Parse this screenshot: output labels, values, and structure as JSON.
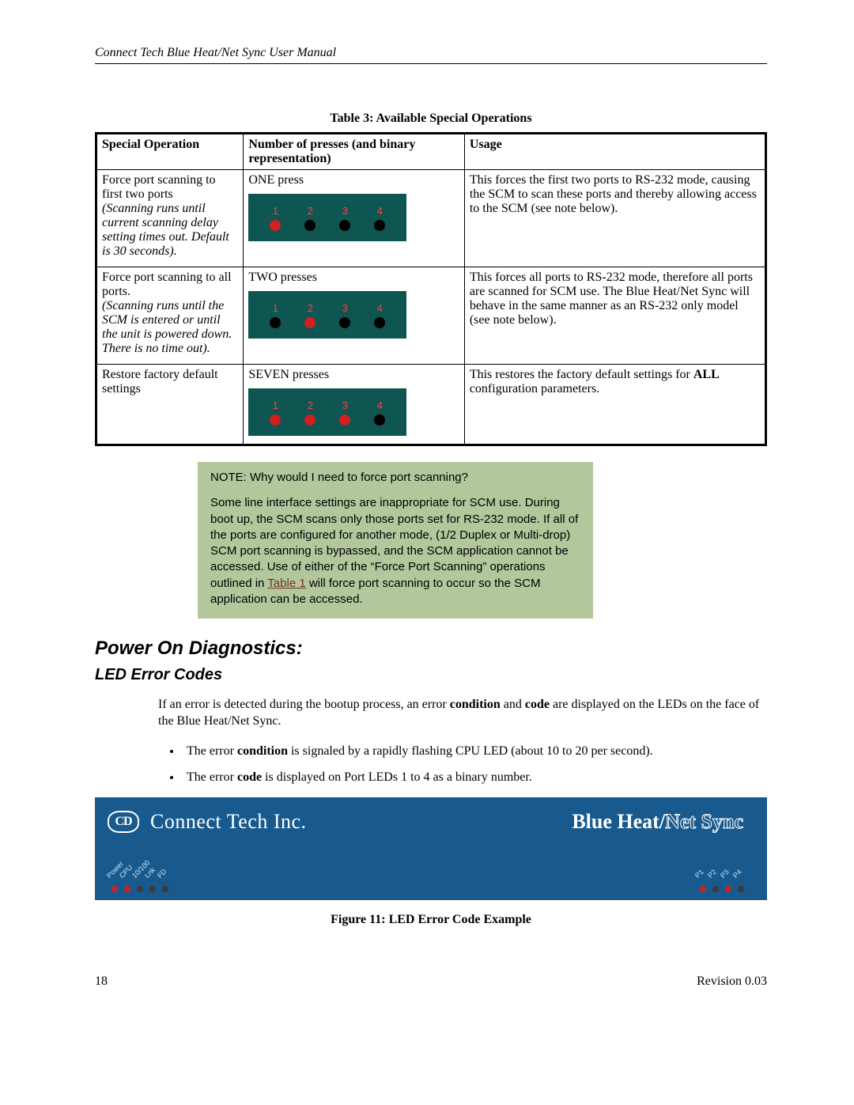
{
  "header": {
    "title": "Connect Tech Blue Heat/Net Sync User Manual"
  },
  "table": {
    "caption": "Table 3: Available Special Operations",
    "columns": [
      "Special Operation",
      "Number of presses (and binary representation)",
      "Usage"
    ],
    "rows": [
      {
        "op_title": "Force port scanning to first two ports",
        "op_note": "(Scanning runs until current scanning delay setting times out. Default is 30 seconds).",
        "presses_label": "ONE press",
        "leds": [
          "on",
          "off",
          "off",
          "off"
        ],
        "usage": "This forces the first two ports to RS-232 mode, causing the SCM to scan these ports and thereby allowing access to the SCM (see note below)."
      },
      {
        "op_title": "Force port scanning to all ports.",
        "op_note": "(Scanning runs until the SCM is entered or until the unit is powered down. There is no time out).",
        "presses_label": "TWO presses",
        "leds": [
          "off",
          "on",
          "off",
          "off"
        ],
        "usage": "This forces all ports to RS-232 mode, therefore all ports are scanned for SCM use. The Blue Heat/Net Sync will behave in the same manner as an RS-232 only model (see note below)."
      },
      {
        "op_title": "Restore factory default settings",
        "op_note": "",
        "presses_label": "SEVEN  presses",
        "leds": [
          "on",
          "on",
          "on",
          "off"
        ],
        "usage_pre": "This restores the factory default settings for ",
        "usage_bold": "ALL",
        "usage_post": " configuration parameters."
      }
    ],
    "led_labels": [
      "1",
      "2",
      "3",
      "4"
    ],
    "led_colors": {
      "on": "#d02020",
      "off": "#000000",
      "bg": "#0f5551",
      "num": "#ff4040"
    }
  },
  "note": {
    "title": "NOTE: Why would I need to force port scanning?",
    "body_pre": "Some line interface settings are inappropriate for SCM use. During boot up, the SCM scans only those ports set for RS-232 mode. If all of the ports are configured for another mode, (1/2 Duplex or Multi-drop) SCM port scanning is bypassed, and the SCM application cannot be accessed. Use of either of the “Force Port Scanning” operations outlined in ",
    "link_text": "Table 1",
    "body_post": " will force port scanning to occur so the SCM application can be accessed.",
    "bg": "#b2c79c"
  },
  "section": {
    "heading": "Power On Diagnostics:",
    "subheading": "LED Error Codes",
    "para_pre": "If an error is detected during the bootup process, an error ",
    "para_b1": "condition",
    "para_mid1": " and ",
    "para_b2": "code",
    "para_post": " are displayed on the LEDs on the face of the Blue Heat/Net Sync.",
    "bullet1_pre": "The error ",
    "bullet1_b": "condition",
    "bullet1_post": " is signaled by a rapidly flashing CPU LED (about 10 to 20 per second).",
    "bullet2_pre": "The error ",
    "bullet2_b": "code",
    "bullet2_post": " is displayed on Port LEDs 1 to 4 as a binary number."
  },
  "device": {
    "logo_badge": "CD",
    "logo_text": "Connect Tech Inc.",
    "brand_solid": "Blue Heat/",
    "brand_outline": "Net Sync",
    "left_leds": [
      {
        "label": "Power",
        "on": true,
        "color": "#d02020"
      },
      {
        "label": "CPU",
        "on": true,
        "color": "#d02020"
      },
      {
        "label": "10/100",
        "on": false,
        "color": "#555"
      },
      {
        "label": "Lnk",
        "on": false,
        "color": "#555"
      },
      {
        "label": "FD",
        "on": false,
        "color": "#555"
      }
    ],
    "right_leds": [
      {
        "label": "P1",
        "on": true,
        "color": "#d02020"
      },
      {
        "label": "P2",
        "on": false,
        "color": "#555"
      },
      {
        "label": "P3",
        "on": true,
        "color": "#d02020"
      },
      {
        "label": "P4",
        "on": false,
        "color": "#555"
      }
    ],
    "bg": "#185a8e"
  },
  "figure_caption": "Figure 11: LED Error Code Example",
  "footer": {
    "page": "18",
    "revision": "Revision 0.03"
  }
}
